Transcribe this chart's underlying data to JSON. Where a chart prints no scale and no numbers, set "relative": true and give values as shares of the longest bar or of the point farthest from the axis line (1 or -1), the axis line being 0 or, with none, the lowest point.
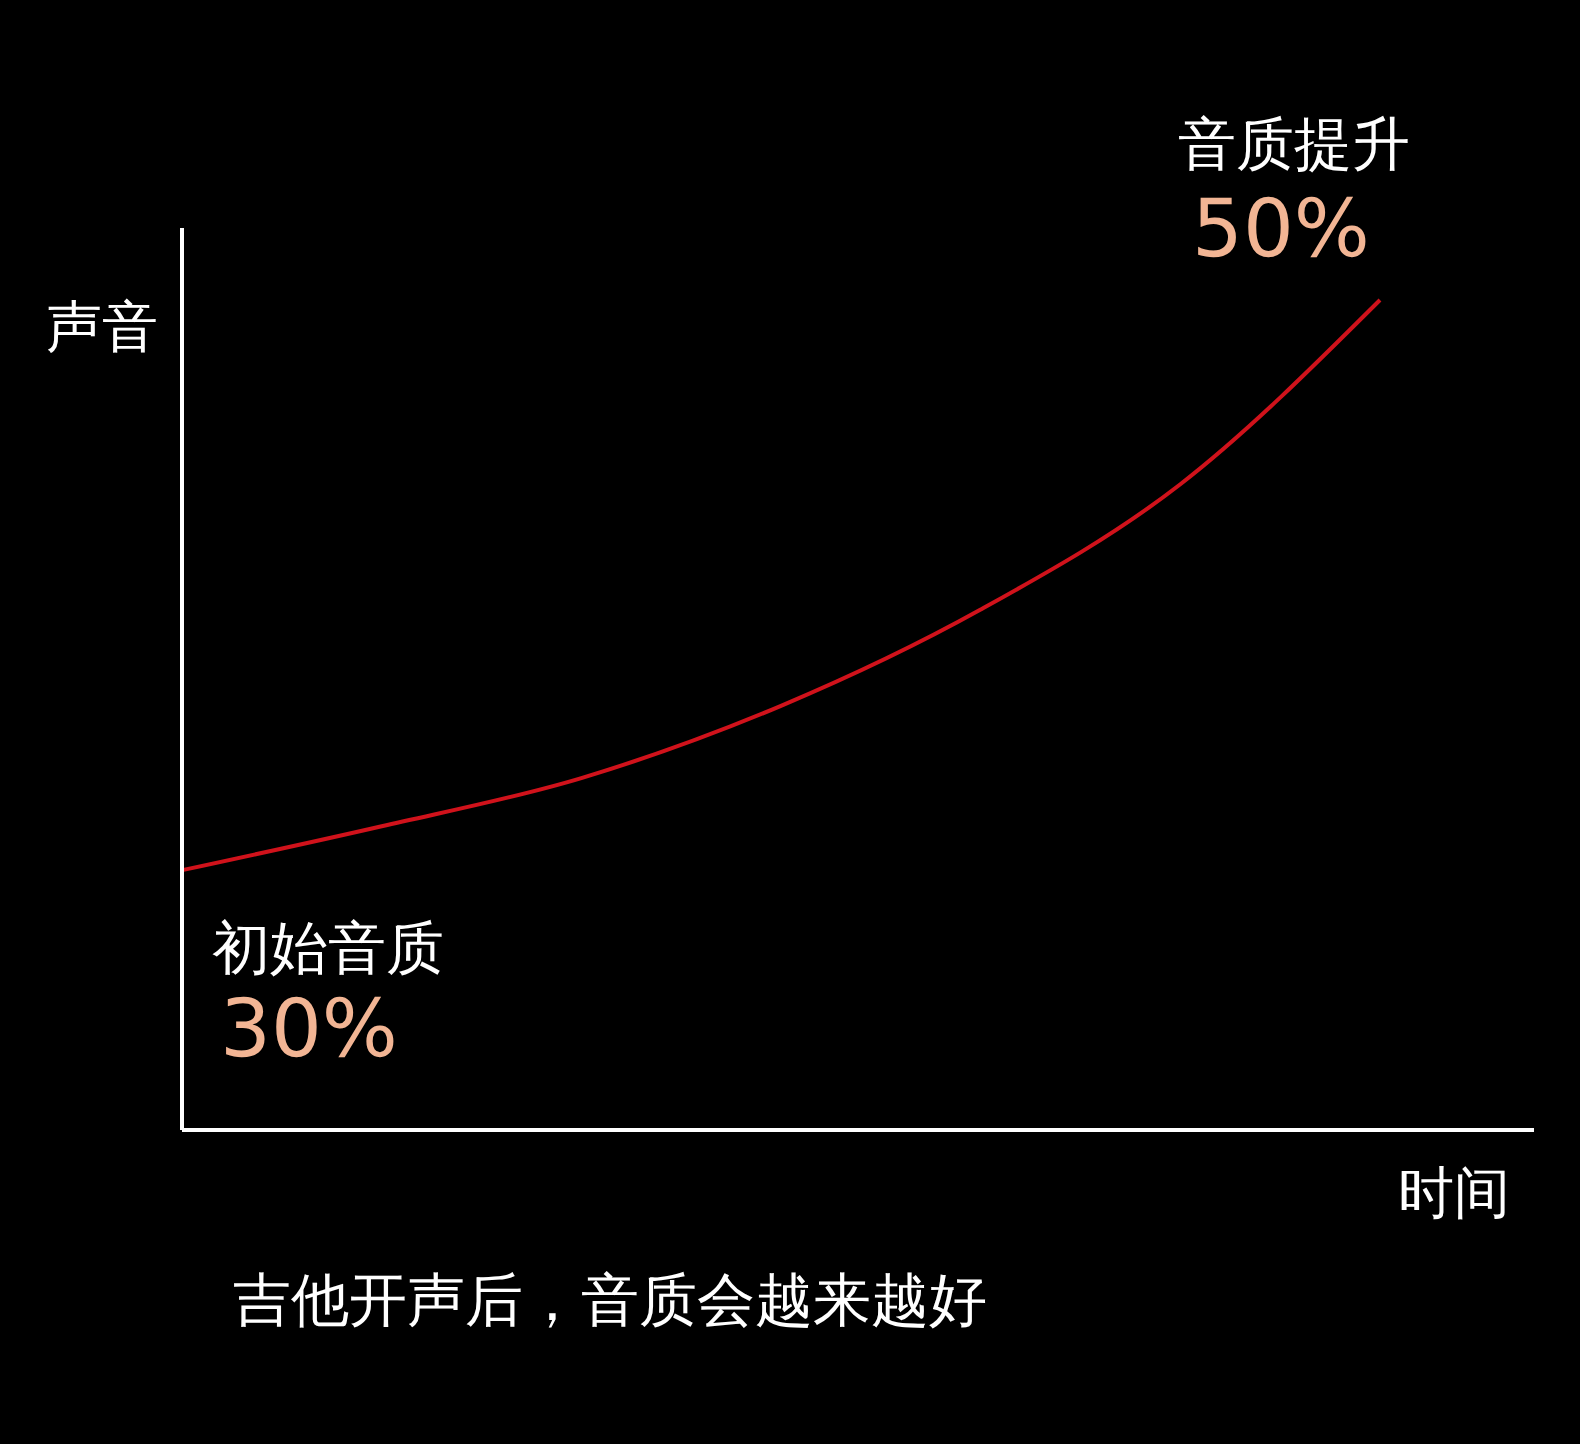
{
  "chart_data": {
    "type": "line",
    "title": "吉他开声后，音质会越来越好",
    "xlabel": "时间",
    "ylabel": "声音",
    "relative": true,
    "legend": false,
    "marker": "none",
    "line_style": "solid",
    "categories": [
      null,
      null,
      null,
      null,
      null,
      null,
      null
    ],
    "series": [
      {
        "color": "#d0121b",
        "values": [
          0.313,
          0.366,
          0.424,
          0.511,
          0.627,
          0.778,
          1
        ]
      }
    ],
    "annotations": [
      "初始音质",
      "30%",
      "音质提升",
      "50%"
    ]
  }
}
